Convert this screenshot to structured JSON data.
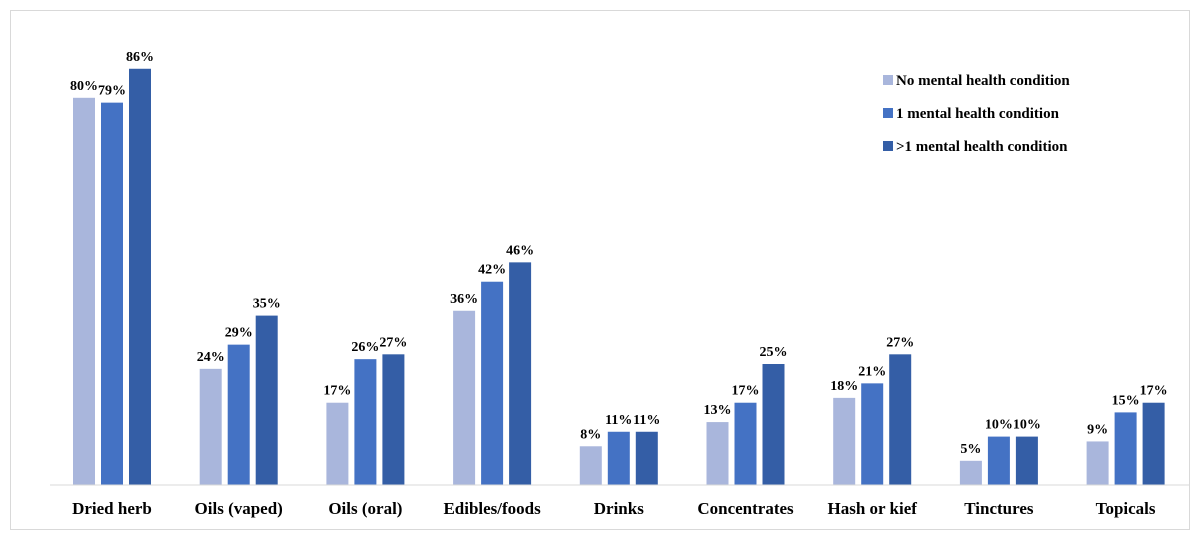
{
  "chart_data": {
    "type": "bar",
    "title": "",
    "xlabel": "",
    "ylabel": "",
    "ylim": [
      0,
      100
    ],
    "grid": false,
    "legend_position": "top-right",
    "categories": [
      "Dried herb",
      "Oils (vaped)",
      "Oils (oral)",
      "Edibles/foods",
      "Drinks",
      "Concentrates",
      "Hash or kief",
      "Tinctures",
      "Topicals"
    ],
    "series": [
      {
        "name": "No mental health condition",
        "color": "#a9b6dc",
        "values": [
          80,
          24,
          17,
          36,
          8,
          13,
          18,
          5,
          9
        ],
        "labels": [
          "80%",
          "24%",
          "17%",
          "36%",
          "8%",
          "13%",
          "18%",
          "5%",
          "9%"
        ]
      },
      {
        "name": "1 mental health condition",
        "color": "#4472c4",
        "values": [
          79,
          29,
          26,
          42,
          11,
          17,
          21,
          10,
          15
        ],
        "labels": [
          "79%",
          "29%",
          "26%",
          "42%",
          "11%",
          "17%",
          "21%",
          "10%",
          "15%"
        ]
      },
      {
        "name": ">1 mental health condition",
        "color": "#345ea6",
        "values": [
          86,
          35,
          27,
          46,
          11,
          25,
          27,
          10,
          17
        ],
        "labels": [
          "86%",
          "35%",
          "27%",
          "46%",
          "11%",
          "25%",
          "27%",
          "10%",
          "17%"
        ]
      }
    ]
  }
}
